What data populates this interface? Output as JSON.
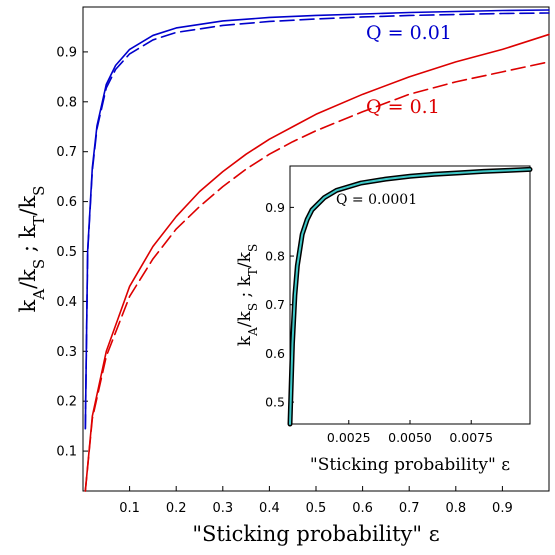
{
  "chart_data": [
    {
      "type": "line",
      "panel": "main",
      "xlabel": "\"Sticking probability\" ε",
      "ylabel": "k_A/k_S ; k_T/k_S",
      "xlim": [
        0,
        1
      ],
      "ylim": [
        0.02,
        0.99
      ],
      "xticks": [
        "0.1",
        "0.2",
        "0.3",
        "0.4",
        "0.5",
        "0.6",
        "0.7",
        "0.8",
        "0.9"
      ],
      "yticks": [
        "0.1",
        "0.2",
        "0.3",
        "0.4",
        "0.5",
        "0.6",
        "0.7",
        "0.8",
        "0.9"
      ],
      "grid": false,
      "annotations": [
        {
          "text": "Q = 0.01",
          "color": "#0000cc"
        },
        {
          "text": "Q = 0.1",
          "color": "#dd0000"
        }
      ],
      "series": [
        {
          "group": "Q = 0.01",
          "style": "solid",
          "color": "#0000cc",
          "x": [
            0.005,
            0.01,
            0.02,
            0.03,
            0.05,
            0.07,
            0.1,
            0.15,
            0.2,
            0.3,
            0.4,
            0.5,
            0.6,
            0.7,
            0.8,
            0.9,
            1.0
          ],
          "y": [
            0.145,
            0.502,
            0.668,
            0.752,
            0.835,
            0.873,
            0.905,
            0.933,
            0.948,
            0.962,
            0.969,
            0.973,
            0.976,
            0.979,
            0.981,
            0.983,
            0.984
          ]
        },
        {
          "group": "Q = 0.01",
          "style": "dashed",
          "color": "#0000cc",
          "x": [
            0.005,
            0.01,
            0.02,
            0.03,
            0.05,
            0.07,
            0.1,
            0.15,
            0.2,
            0.3,
            0.4,
            0.5,
            0.6,
            0.7,
            0.8,
            0.9,
            1.0
          ],
          "y": [
            0.145,
            0.498,
            0.662,
            0.746,
            0.828,
            0.865,
            0.896,
            0.924,
            0.939,
            0.953,
            0.961,
            0.966,
            0.97,
            0.973,
            0.975,
            0.977,
            0.978
          ]
        },
        {
          "group": "Q = 0.1",
          "style": "solid",
          "color": "#dd0000",
          "x": [
            0.005,
            0.02,
            0.05,
            0.1,
            0.15,
            0.2,
            0.25,
            0.3,
            0.35,
            0.4,
            0.45,
            0.5,
            0.6,
            0.7,
            0.8,
            0.9,
            1.0
          ],
          "y": [
            0.02,
            0.17,
            0.3,
            0.43,
            0.51,
            0.57,
            0.62,
            0.66,
            0.695,
            0.725,
            0.75,
            0.775,
            0.815,
            0.85,
            0.88,
            0.905,
            0.935
          ]
        },
        {
          "group": "Q = 0.1",
          "style": "dashed",
          "color": "#dd0000",
          "x": [
            0.005,
            0.02,
            0.05,
            0.1,
            0.15,
            0.2,
            0.25,
            0.3,
            0.35,
            0.4,
            0.45,
            0.5,
            0.6,
            0.7,
            0.8,
            0.9,
            1.0
          ],
          "y": [
            0.02,
            0.165,
            0.29,
            0.41,
            0.485,
            0.545,
            0.59,
            0.63,
            0.665,
            0.695,
            0.72,
            0.742,
            0.78,
            0.815,
            0.84,
            0.86,
            0.88
          ]
        }
      ]
    },
    {
      "type": "line",
      "panel": "inset",
      "xlabel": "\"Sticking probability\" ε",
      "ylabel": "k_A/k_S ; k_T/k_S",
      "xlim": [
        0.0001,
        0.0099
      ],
      "ylim": [
        0.455,
        0.985
      ],
      "xticks": [
        "0.0025",
        "0.0050",
        "0.0075"
      ],
      "yticks": [
        "0.5",
        "0.6",
        "0.7",
        "0.8",
        "0.9"
      ],
      "grid": false,
      "annotations": [
        {
          "text": "Q = 0.0001",
          "color": "#000000"
        }
      ],
      "series": [
        {
          "group": "Q = 0.0001",
          "style": "solid",
          "color": "#000000",
          "x": [
            0.0001,
            0.0002,
            0.0003,
            0.0004,
            0.0006,
            0.0008,
            0.001,
            0.0015,
            0.002,
            0.003,
            0.004,
            0.005,
            0.006,
            0.007,
            0.008,
            0.009,
            0.0099
          ],
          "y": [
            0.455,
            0.62,
            0.72,
            0.78,
            0.845,
            0.875,
            0.895,
            0.92,
            0.935,
            0.95,
            0.958,
            0.964,
            0.968,
            0.971,
            0.974,
            0.976,
            0.978
          ]
        },
        {
          "group": "Q = 0.0001",
          "style": "solid",
          "color": "#3fc8c8",
          "x": [
            0.0001,
            0.0002,
            0.0003,
            0.0004,
            0.0006,
            0.0008,
            0.001,
            0.0015,
            0.002,
            0.003,
            0.004,
            0.005,
            0.006,
            0.007,
            0.008,
            0.009,
            0.0099
          ],
          "y": [
            0.455,
            0.62,
            0.72,
            0.78,
            0.845,
            0.875,
            0.895,
            0.92,
            0.935,
            0.95,
            0.958,
            0.964,
            0.968,
            0.971,
            0.974,
            0.976,
            0.978
          ]
        }
      ]
    }
  ]
}
